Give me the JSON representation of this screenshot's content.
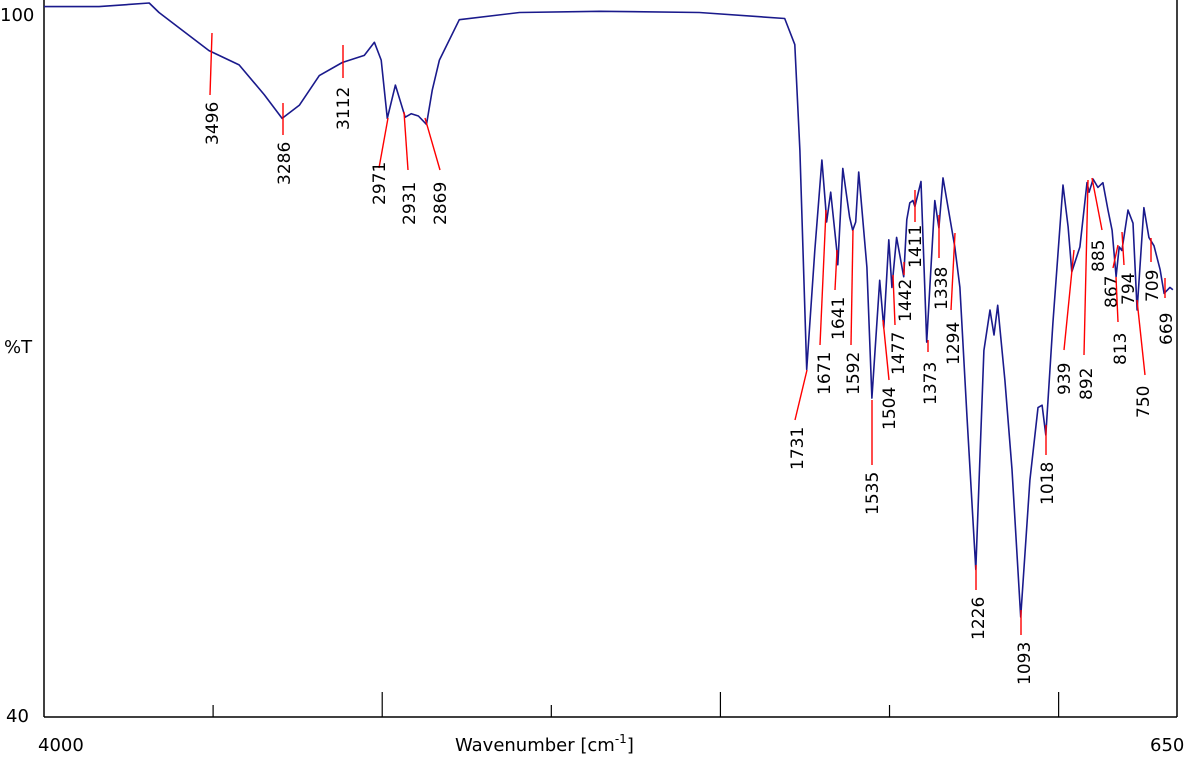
{
  "chart_data": {
    "type": "line",
    "title": "",
    "xlabel": "Wavenumber [cm",
    "xlabel_sup": "-1",
    "xlabel_end": "]",
    "ylabel": "%T",
    "xlim": [
      4000,
      650
    ],
    "ylim": [
      40,
      100
    ],
    "x_reversed": true,
    "x_tick_labels": [
      "4000",
      "650"
    ],
    "y_tick_labels": [
      "100",
      "40"
    ],
    "x_minor_ticks": [
      3500,
      3000,
      2500,
      2000,
      1500,
      1000
    ],
    "grid": false,
    "line_color": "#1a1a8c",
    "peak_marker_color": "#ff0000",
    "spectrum": [
      [
        4000,
        99.7
      ],
      [
        3837,
        99.7
      ],
      [
        3689,
        100.0
      ],
      [
        3660,
        99.2
      ],
      [
        3600,
        97.9
      ],
      [
        3512,
        96.0
      ],
      [
        3423,
        94.8
      ],
      [
        3349,
        92.3
      ],
      [
        3296,
        90.3
      ],
      [
        3245,
        91.4
      ],
      [
        3186,
        93.9
      ],
      [
        3118,
        95.0
      ],
      [
        3053,
        95.6
      ],
      [
        3023,
        96.7
      ],
      [
        3003,
        95.2
      ],
      [
        2985,
        90.3
      ],
      [
        2961,
        93.1
      ],
      [
        2932,
        90.4
      ],
      [
        2914,
        90.7
      ],
      [
        2893,
        90.5
      ],
      [
        2869,
        89.8
      ],
      [
        2852,
        92.7
      ],
      [
        2831,
        95.2
      ],
      [
        2772,
        98.6
      ],
      [
        2594,
        99.2
      ],
      [
        2357,
        99.3
      ],
      [
        2062,
        99.2
      ],
      [
        1810,
        98.7
      ],
      [
        1780,
        96.5
      ],
      [
        1765,
        87.6
      ],
      [
        1745,
        69.2
      ],
      [
        1721,
        79.2
      ],
      [
        1700,
        86.8
      ],
      [
        1689,
        82.9
      ],
      [
        1686,
        81.6
      ],
      [
        1674,
        84.1
      ],
      [
        1656,
        79.2
      ],
      [
        1653,
        78.0
      ],
      [
        1638,
        86.1
      ],
      [
        1618,
        82.0
      ],
      [
        1609,
        80.9
      ],
      [
        1600,
        81.6
      ],
      [
        1591,
        85.8
      ],
      [
        1567,
        77.8
      ],
      [
        1552,
        66.8
      ],
      [
        1529,
        76.7
      ],
      [
        1517,
        72.7
      ],
      [
        1502,
        80.1
      ],
      [
        1493,
        76.1
      ],
      [
        1479,
        80.3
      ],
      [
        1458,
        77.0
      ],
      [
        1449,
        81.8
      ],
      [
        1440,
        83.2
      ],
      [
        1431,
        83.4
      ],
      [
        1425,
        82.9
      ],
      [
        1407,
        85.0
      ],
      [
        1390,
        71.5
      ],
      [
        1366,
        83.4
      ],
      [
        1354,
        81.1
      ],
      [
        1342,
        85.3
      ],
      [
        1307,
        79.5
      ],
      [
        1292,
        76.1
      ],
      [
        1271,
        65.2
      ],
      [
        1245,
        52.4
      ],
      [
        1221,
        70.8
      ],
      [
        1203,
        74.2
      ],
      [
        1191,
        72.1
      ],
      [
        1180,
        74.6
      ],
      [
        1159,
        68.3
      ],
      [
        1138,
        60.8
      ],
      [
        1112,
        48.4
      ],
      [
        1085,
        59.9
      ],
      [
        1061,
        66.0
      ],
      [
        1049,
        66.2
      ],
      [
        1038,
        63.7
      ],
      [
        1017,
        73.1
      ],
      [
        987,
        84.7
      ],
      [
        972,
        81.2
      ],
      [
        961,
        77.4
      ],
      [
        937,
        79.5
      ],
      [
        916,
        84.9
      ],
      [
        910,
        84.1
      ],
      [
        898,
        85.2
      ],
      [
        884,
        84.5
      ],
      [
        869,
        84.9
      ],
      [
        854,
        82.6
      ],
      [
        842,
        80.9
      ],
      [
        830,
        77.0
      ],
      [
        821,
        79.5
      ],
      [
        813,
        79.2
      ],
      [
        795,
        82.6
      ],
      [
        780,
        81.5
      ],
      [
        768,
        74.2
      ],
      [
        748,
        82.8
      ],
      [
        733,
        80.3
      ],
      [
        718,
        79.6
      ],
      [
        700,
        77.6
      ],
      [
        688,
        75.6
      ],
      [
        671,
        76.1
      ],
      [
        662,
        75.9
      ]
    ],
    "peak_labels": [
      "3496",
      "3286",
      "3112",
      "2971",
      "2931",
      "2869",
      "1731",
      "1671",
      "1641",
      "1592",
      "1535",
      "1504",
      "1477",
      "1442",
      "1411",
      "1373",
      "1338",
      "1294",
      "1226",
      "1093",
      "1018",
      "939",
      "892",
      "885",
      "867",
      "813",
      "794",
      "750",
      "709",
      "669"
    ]
  }
}
